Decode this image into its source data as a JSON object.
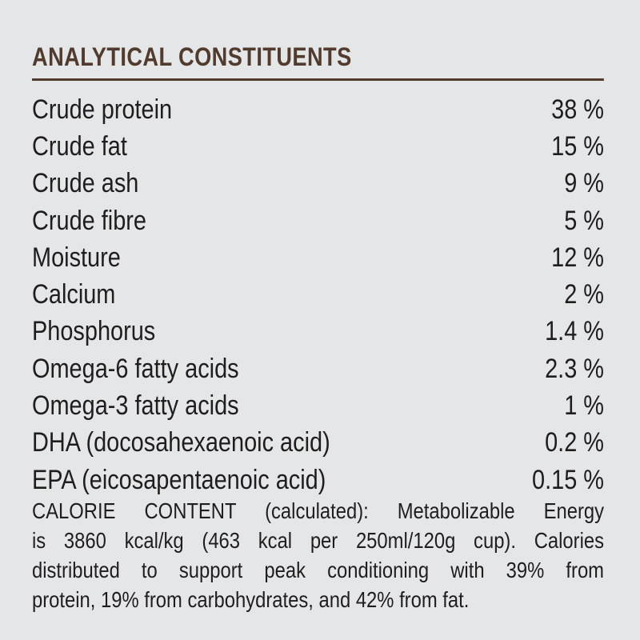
{
  "colors": {
    "background": "#e5e6e7",
    "accent": "#503b2e",
    "text": "#1e1e1e"
  },
  "header": {
    "title": "ANALYTICAL CONSTITUENTS"
  },
  "constituents": {
    "rows": [
      {
        "label": "Crude protein",
        "value": "38 %"
      },
      {
        "label": "Crude fat",
        "value": "15 %"
      },
      {
        "label": "Crude ash",
        "value": "9 %"
      },
      {
        "label": "Crude fibre",
        "value": "5 %"
      },
      {
        "label": "Moisture",
        "value": "12 %"
      },
      {
        "label": "Calcium",
        "value": "2 %"
      },
      {
        "label": "Phosphorus",
        "value": "1.4 %"
      },
      {
        "label": "Omega-6 fatty acids",
        "value": "2.3 %"
      },
      {
        "label": "Omega-3 fatty acids",
        "value": "1 %"
      },
      {
        "label": "DHA (docosahexaenoic acid)",
        "value": "0.2 %"
      },
      {
        "label": "EPA (eicosapentaenoic acid)",
        "value": "0.15 %"
      }
    ]
  },
  "calorie_content": {
    "lines": [
      "CALORIE CONTENT (calculated): Metabolizable Energy",
      "is 3860 kcal/kg (463 kcal per 250ml/120g cup). Calories",
      "distributed to support peak conditioning with 39% from",
      "protein, 19% from carbohydrates, and 42% from fat."
    ]
  }
}
